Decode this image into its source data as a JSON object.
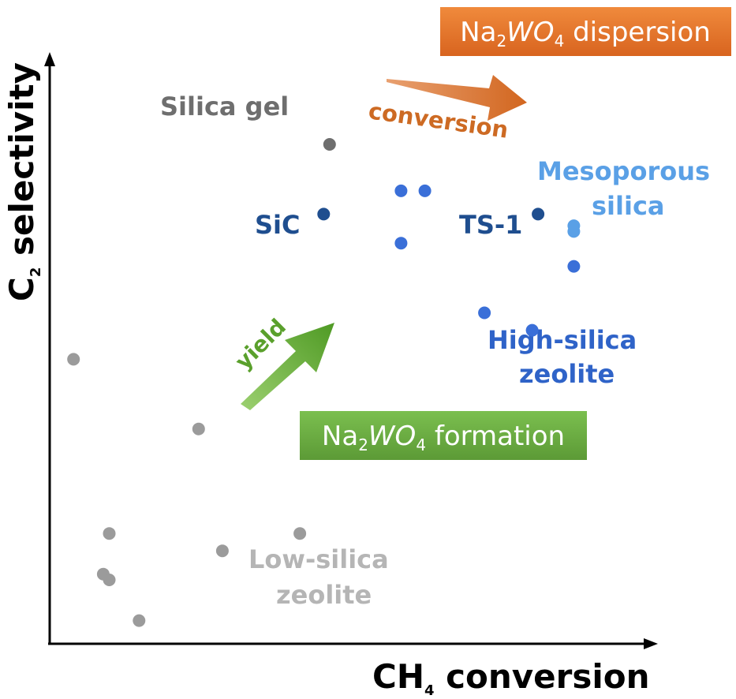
{
  "chart_data": {
    "type": "scatter",
    "xlabel": {
      "main": "CH",
      "sub": "4",
      "rest": " conversion"
    },
    "ylabel": {
      "main": "C",
      "sub": "2",
      "rest": " selectivity"
    },
    "grid": false,
    "series": [
      {
        "color": "#9b9b9b",
        "points": [
          [
            0.04,
            0.49
          ],
          [
            0.25,
            0.37
          ],
          [
            0.1,
            0.19
          ],
          [
            0.09,
            0.12
          ],
          [
            0.1,
            0.11
          ],
          [
            0.29,
            0.16
          ],
          [
            0.42,
            0.19
          ],
          [
            0.15,
            0.04
          ]
        ]
      },
      {
        "color": "#6e6e6e",
        "points": [
          [
            0.47,
            0.86
          ]
        ]
      },
      {
        "color": "#1f4e8f",
        "points": [
          [
            0.46,
            0.74
          ],
          [
            0.82,
            0.74
          ]
        ]
      },
      {
        "color": "#3a6fd8",
        "points": [
          [
            0.59,
            0.78
          ],
          [
            0.63,
            0.78
          ],
          [
            0.59,
            0.69
          ],
          [
            0.88,
            0.65
          ],
          [
            0.73,
            0.57
          ],
          [
            0.81,
            0.54
          ]
        ]
      },
      {
        "color": "#5aa0e6",
        "points": [
          [
            0.88,
            0.72
          ],
          [
            0.88,
            0.71
          ]
        ]
      }
    ],
    "annotations": {
      "silica_gel": {
        "text": "Silica gel",
        "color": "#6e6e6e"
      },
      "sic": {
        "text": "SiC",
        "color": "#1f4e8f"
      },
      "ts1": {
        "text": "TS-1",
        "color": "#1f4e8f"
      },
      "mesoporous": {
        "line1": "Mesoporous",
        "line2": "silica",
        "color": "#5aa0e6"
      },
      "high_silica": {
        "line1": "High-silica",
        "line2": "zeolite",
        "color": "#2f63c8"
      },
      "low_silica": {
        "line1": "Low-silica",
        "line2": "zeolite",
        "color": "#b5b5b5"
      },
      "conversion_arrow": {
        "text": "conversion",
        "color": "#cd6a23"
      },
      "yield_arrow": {
        "text": "yield",
        "color": "#5aa02c"
      },
      "dispersion_box": {
        "pre": "Na",
        "s1": "2",
        "mid": "WO",
        "s2": "4",
        "post": " dispersion",
        "color": "#ec7d31"
      },
      "formation_box": {
        "pre": "Na",
        "s1": "2",
        "mid": "WO",
        "s2": "4",
        "post": " formation",
        "color": "#6fac46"
      }
    }
  }
}
